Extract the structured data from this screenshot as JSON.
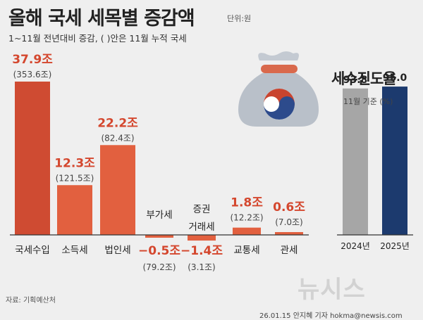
{
  "header": {
    "title": "올해 국세 세목별 증감액",
    "unit": "단위:원",
    "subtitle": "1~11월 전년대비 증감, ( )안은 11월 누적 국세"
  },
  "right_panel": {
    "title": "세수진도율",
    "subtitle": "11월 기준 (%)"
  },
  "footer": {
    "source": "자료: 기획예산처",
    "credit": "26.01.15 안지혜 기자 hokma@newsis.com",
    "watermark": "뉴시스"
  },
  "colors": {
    "tax_bar": "#cf4b32",
    "tax_bar_light": "#e2603f",
    "value_label": "#d4472e",
    "progress_2024": "#a6a6a6",
    "progress_2025": "#1c3a6e",
    "baseline": "#333333",
    "pouch": "#b9c0c9"
  },
  "icon": "money-pouch-icon",
  "chart_data": [
    {
      "type": "bar",
      "categories": [
        "국세수입",
        "소득세",
        "법인세",
        "부가세",
        "증권\n거래세",
        "교통세",
        "관세"
      ],
      "values": [
        37.9,
        12.3,
        22.2,
        -0.5,
        -1.4,
        1.8,
        0.6
      ],
      "value_labels": [
        "37.9조",
        "12.3조",
        "22.2조",
        "−0.5조",
        "−1.4조",
        "1.8조",
        "0.6조"
      ],
      "cumulative_labels": [
        "(353.6조)",
        "(121.5조)",
        "(82.4조)",
        "(79.2조)",
        "(3.1조)",
        "(12.2조)",
        "(7.0조)"
      ],
      "cumulative_values": [
        353.6,
        121.5,
        82.4,
        79.2,
        3.1,
        12.2,
        7.0
      ],
      "ylim": [
        -1.5,
        38
      ],
      "grid": false,
      "legend": "none"
    },
    {
      "type": "bar",
      "categories": [
        "2024년",
        "2025년"
      ],
      "values": [
        93.8,
        95.0
      ],
      "value_labels": [
        "93.8",
        "95.0"
      ],
      "ylim": [
        0,
        100
      ],
      "grid": false,
      "legend": "none"
    }
  ]
}
